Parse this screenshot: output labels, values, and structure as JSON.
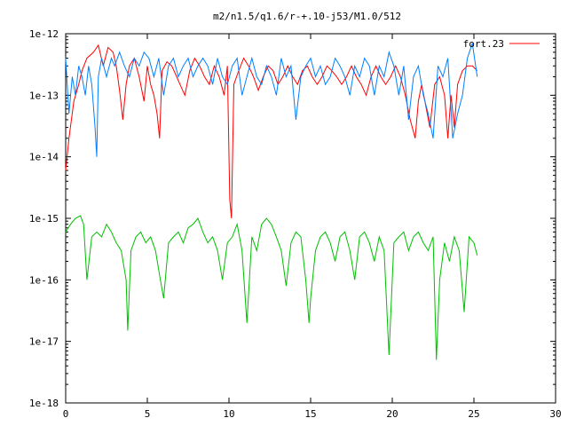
{
  "chart_data": {
    "type": "line",
    "title": "m2/n1.5/q1.6/r-+.10-j53/M1.0/512",
    "xlabel": "",
    "ylabel": "",
    "xlim": [
      0,
      30
    ],
    "ylim": [
      1e-18,
      1e-12
    ],
    "yscale": "log",
    "grid": false,
    "legend": "top-right",
    "x_ticks": [
      "0",
      "5",
      "10",
      "15",
      "20",
      "25",
      "30"
    ],
    "y_ticks": [
      "1e-18",
      "1e-17",
      "1e-16",
      "1e-15",
      "1e-14",
      "1e-13",
      "1e-12"
    ],
    "series": [
      {
        "name": "fort.23",
        "color": "#ff0000",
        "x": [
          0,
          0.2,
          0.5,
          0.8,
          1.0,
          1.3,
          1.7,
          2.0,
          2.3,
          2.6,
          2.9,
          3.1,
          3.3,
          3.5,
          3.7,
          3.9,
          4.2,
          4.5,
          4.8,
          5.0,
          5.2,
          5.4,
          5.6,
          5.75,
          5.9,
          6.2,
          6.5,
          6.8,
          7.0,
          7.3,
          7.6,
          7.9,
          8.2,
          8.5,
          8.8,
          9.1,
          9.4,
          9.7,
          9.9,
          10.05,
          10.15,
          10.3,
          10.6,
          10.9,
          11.2,
          11.5,
          11.8,
          12.1,
          12.4,
          12.7,
          13.0,
          13.3,
          13.6,
          13.9,
          14.2,
          14.5,
          14.8,
          15.1,
          15.4,
          15.7,
          16.0,
          16.3,
          16.6,
          16.9,
          17.2,
          17.5,
          17.8,
          18.1,
          18.4,
          18.7,
          19.0,
          19.3,
          19.6,
          19.9,
          20.2,
          20.5,
          20.8,
          21.1,
          21.4,
          21.6,
          21.8,
          22.0,
          22.3,
          22.6,
          22.9,
          23.2,
          23.4,
          23.6,
          23.8,
          24.0,
          24.3,
          24.6,
          24.9,
          25.2
        ],
        "y": [
          6e-15,
          2e-14,
          8e-14,
          1.5e-13,
          2.5e-13,
          4e-13,
          5e-13,
          6.5e-13,
          3e-13,
          6e-13,
          5e-13,
          3e-13,
          1.2e-13,
          4e-14,
          1.5e-13,
          3e-13,
          4e-13,
          2e-13,
          8e-14,
          3e-13,
          1.5e-13,
          1e-13,
          5e-14,
          2e-14,
          2.5e-13,
          3.5e-13,
          3e-13,
          2e-13,
          1.5e-13,
          1e-13,
          2.5e-13,
          4e-13,
          3e-13,
          2e-13,
          1.5e-13,
          3e-13,
          2e-13,
          1e-13,
          3e-13,
          2e-15,
          1e-15,
          1.5e-13,
          2.5e-13,
          4e-13,
          3e-13,
          2e-13,
          1.2e-13,
          2e-13,
          3e-13,
          2.5e-13,
          1.5e-13,
          2e-13,
          3e-13,
          2e-13,
          1.5e-13,
          2.5e-13,
          3e-13,
          2e-13,
          1.5e-13,
          2e-13,
          3e-13,
          2.5e-13,
          2e-13,
          1.5e-13,
          2e-13,
          3e-13,
          2e-13,
          1.5e-13,
          1e-13,
          2e-13,
          3e-13,
          2e-13,
          1.5e-13,
          2e-13,
          3e-13,
          2e-13,
          1e-13,
          4e-14,
          2e-14,
          8e-14,
          1.5e-13,
          8e-14,
          3e-14,
          1.5e-13,
          2e-13,
          1e-13,
          2e-14,
          1e-13,
          3e-14,
          1.5e-13,
          2.5e-13,
          3e-13,
          3e-13,
          2.5e-13
        ]
      },
      {
        "name": "",
        "color": "#0080ff",
        "x": [
          0,
          0.2,
          0.4,
          0.6,
          0.8,
          1.0,
          1.2,
          1.4,
          1.6,
          1.8,
          1.9,
          2.0,
          2.2,
          2.5,
          2.8,
          3.0,
          3.3,
          3.6,
          3.9,
          4.2,
          4.5,
          4.8,
          5.1,
          5.4,
          5.7,
          6.0,
          6.3,
          6.6,
          6.9,
          7.2,
          7.5,
          7.8,
          8.1,
          8.4,
          8.7,
          9.0,
          9.3,
          9.6,
          9.9,
          10.2,
          10.5,
          10.8,
          11.1,
          11.4,
          11.7,
          12.0,
          12.3,
          12.6,
          12.9,
          13.2,
          13.5,
          13.8,
          14.1,
          14.4,
          14.7,
          15.0,
          15.3,
          15.6,
          15.9,
          16.2,
          16.5,
          16.8,
          17.1,
          17.4,
          17.7,
          18.0,
          18.3,
          18.6,
          18.9,
          19.2,
          19.5,
          19.8,
          20.1,
          20.4,
          20.7,
          21.0,
          21.3,
          21.6,
          21.9,
          22.2,
          22.5,
          22.8,
          23.1,
          23.4,
          23.7,
          24.0,
          24.3,
          24.6,
          24.9,
          25.2
        ],
        "y": [
          4e-13,
          5e-14,
          2e-13,
          1e-13,
          3e-13,
          2e-13,
          1e-13,
          3e-13,
          1.5e-13,
          3e-14,
          1e-14,
          2e-13,
          4e-13,
          2e-13,
          4e-13,
          3e-13,
          5e-13,
          3e-13,
          2e-13,
          4e-13,
          3e-13,
          5e-13,
          4e-13,
          2e-13,
          4e-13,
          1e-13,
          3e-13,
          4e-13,
          2e-13,
          3e-13,
          4e-13,
          2e-13,
          3e-13,
          4e-13,
          3e-13,
          1.5e-13,
          4e-13,
          2e-13,
          1.5e-13,
          3e-13,
          4e-13,
          1e-13,
          2e-13,
          4e-13,
          2e-13,
          1.5e-13,
          3e-13,
          2e-13,
          1e-13,
          4e-13,
          2e-13,
          3e-13,
          4e-14,
          2e-13,
          3e-13,
          4e-13,
          2e-13,
          3e-13,
          1.5e-13,
          2e-13,
          4e-13,
          3e-13,
          2e-13,
          1e-13,
          3e-13,
          2e-13,
          4e-13,
          3e-13,
          1e-13,
          3e-13,
          2e-13,
          5e-13,
          3e-13,
          1e-13,
          3e-13,
          4e-14,
          2e-13,
          3e-13,
          1e-13,
          5e-14,
          2e-14,
          3e-13,
          2e-13,
          4e-13,
          2e-14,
          5e-14,
          1e-13,
          4e-13,
          7e-13,
          2e-13
        ]
      },
      {
        "name": "",
        "color": "#00c000",
        "x": [
          0,
          0.3,
          0.6,
          0.9,
          1.1,
          1.3,
          1.6,
          1.9,
          2.2,
          2.5,
          2.8,
          3.1,
          3.4,
          3.7,
          3.8,
          4.0,
          4.3,
          4.6,
          4.9,
          5.2,
          5.5,
          5.8,
          6.0,
          6.3,
          6.6,
          6.9,
          7.2,
          7.5,
          7.8,
          8.1,
          8.4,
          8.7,
          9.0,
          9.3,
          9.6,
          9.9,
          10.2,
          10.5,
          10.8,
          11.1,
          11.4,
          11.7,
          12.0,
          12.3,
          12.6,
          12.9,
          13.2,
          13.5,
          13.8,
          14.1,
          14.4,
          14.7,
          14.9,
          15.0,
          15.3,
          15.6,
          15.9,
          16.2,
          16.5,
          16.8,
          17.1,
          17.4,
          17.7,
          18.0,
          18.3,
          18.6,
          18.9,
          19.2,
          19.5,
          19.8,
          20.1,
          20.4,
          20.7,
          21.0,
          21.3,
          21.6,
          21.9,
          22.2,
          22.5,
          22.7,
          22.9,
          23.2,
          23.5,
          23.8,
          24.1,
          24.4,
          24.7,
          25.0,
          25.2
        ],
        "y": [
          6e-16,
          8e-16,
          1e-15,
          1.1e-15,
          8e-16,
          1e-16,
          5e-16,
          6e-16,
          5e-16,
          8e-16,
          6e-16,
          4e-16,
          3e-16,
          1e-16,
          1.5e-17,
          3e-16,
          5e-16,
          6e-16,
          4e-16,
          5e-16,
          3e-16,
          1e-16,
          5e-17,
          4e-16,
          5e-16,
          6e-16,
          4e-16,
          7e-16,
          8e-16,
          1e-15,
          6e-16,
          4e-16,
          5e-16,
          3e-16,
          1e-16,
          4e-16,
          5e-16,
          8e-16,
          3e-16,
          2e-17,
          5e-16,
          3e-16,
          8e-16,
          1e-15,
          8e-16,
          5e-16,
          3e-16,
          8e-17,
          4e-16,
          6e-16,
          5e-16,
          1e-16,
          2e-17,
          5e-17,
          3e-16,
          5e-16,
          6e-16,
          4e-16,
          2e-16,
          5e-16,
          6e-16,
          3e-16,
          1e-16,
          5e-16,
          6e-16,
          4e-16,
          2e-16,
          5e-16,
          3e-16,
          6e-18,
          4e-16,
          5e-16,
          6e-16,
          3e-16,
          5e-16,
          6e-16,
          4e-16,
          3e-16,
          5e-16,
          5e-18,
          1e-16,
          4e-16,
          2e-16,
          5e-16,
          3e-16,
          3e-17,
          5e-16,
          4e-16,
          2.5e-16
        ]
      }
    ]
  }
}
